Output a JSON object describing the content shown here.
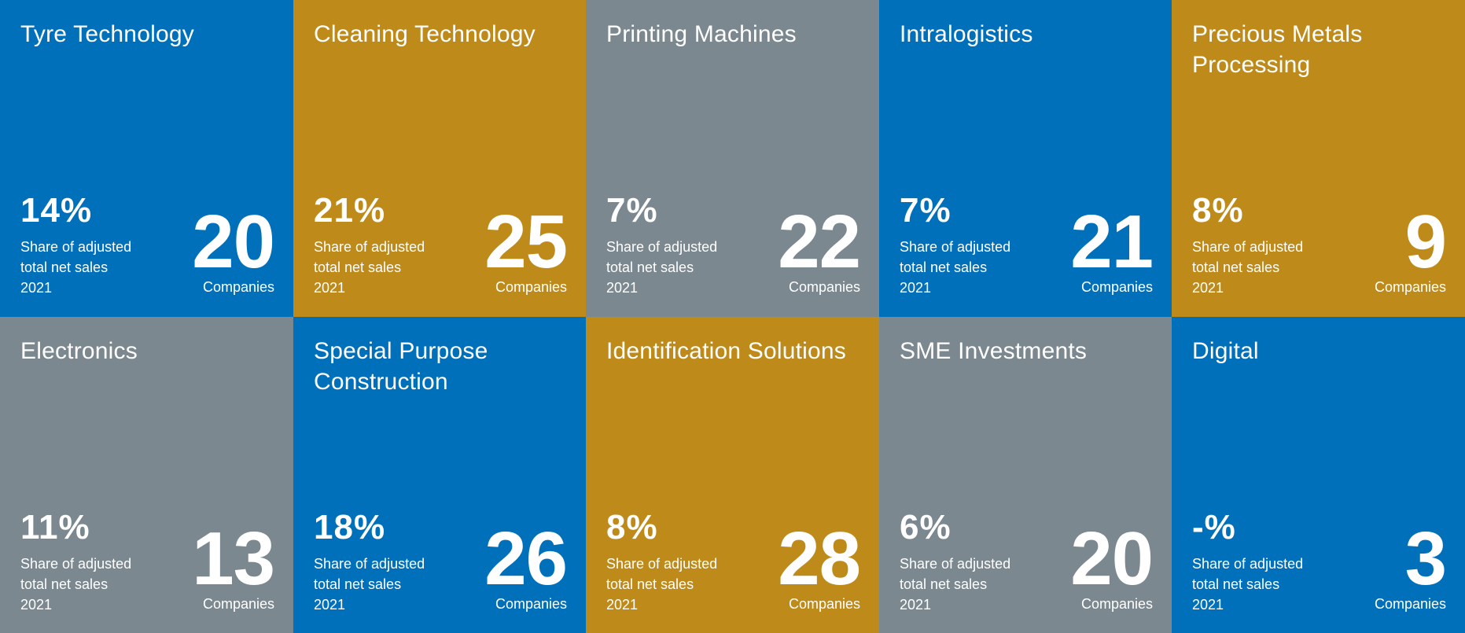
{
  "colors": {
    "blue": "#0070bb",
    "gold": "#be8a19",
    "grey": "#7b888f",
    "text": "#ffffff"
  },
  "tiles": [
    {
      "color": "blue",
      "title": "Tyre Technology",
      "share": "14%",
      "caption_line1": "Share of adjusted",
      "caption_line2": "total net sales",
      "caption_line3": "2021",
      "count": "20",
      "count_label": "Companies"
    },
    {
      "color": "gold",
      "title": "Cleaning Technology",
      "share": "21%",
      "caption_line1": "Share of adjusted",
      "caption_line2": "total net sales",
      "caption_line3": "2021",
      "count": "25",
      "count_label": "Companies"
    },
    {
      "color": "grey",
      "title": "Printing Machines",
      "share": "7%",
      "caption_line1": "Share of adjusted",
      "caption_line2": "total net sales",
      "caption_line3": "2021",
      "count": "22",
      "count_label": "Companies"
    },
    {
      "color": "blue",
      "title": "Intralogistics",
      "share": "7%",
      "caption_line1": "Share of adjusted",
      "caption_line2": "total net sales",
      "caption_line3": "2021",
      "count": "21",
      "count_label": "Companies"
    },
    {
      "color": "gold",
      "title": "Precious Metals Processing",
      "share": "8%",
      "caption_line1": "Share of adjusted",
      "caption_line2": "total net sales",
      "caption_line3": "2021",
      "count": "9",
      "count_label": "Companies"
    },
    {
      "color": "grey",
      "title": "Electronics",
      "share": "11%",
      "caption_line1": "Share of adjusted",
      "caption_line2": "total net sales",
      "caption_line3": "2021",
      "count": "13",
      "count_label": "Companies"
    },
    {
      "color": "blue",
      "title": "Special Purpose Construction",
      "share": "18%",
      "caption_line1": "Share of adjusted",
      "caption_line2": "total net sales",
      "caption_line3": "2021",
      "count": "26",
      "count_label": "Companies"
    },
    {
      "color": "gold",
      "title": "Identification Solutions",
      "share": "8%",
      "caption_line1": "Share of adjusted",
      "caption_line2": "total net sales",
      "caption_line3": "2021",
      "count": "28",
      "count_label": "Companies"
    },
    {
      "color": "grey",
      "title": "SME Investments",
      "share": "6%",
      "caption_line1": "Share of adjusted",
      "caption_line2": "total net sales",
      "caption_line3": "2021",
      "count": "20",
      "count_label": "Companies"
    },
    {
      "color": "blue",
      "title": "Digital",
      "share": "-%",
      "caption_line1": "Share of adjusted",
      "caption_line2": "total net sales",
      "caption_line3": "2021",
      "count": "3",
      "count_label": "Companies"
    }
  ]
}
